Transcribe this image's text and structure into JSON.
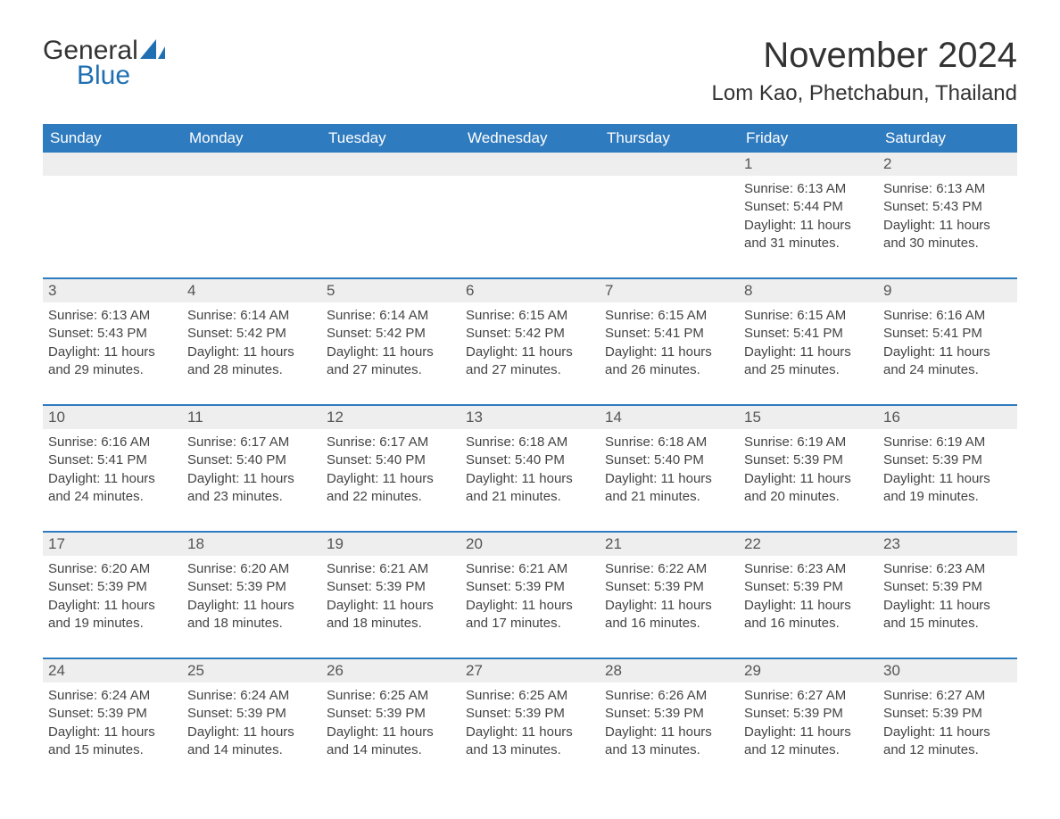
{
  "logo": {
    "text1": "General",
    "text2": "Blue",
    "accent_color": "#1f6fb2"
  },
  "title": "November 2024",
  "location": "Lom Kao, Phetchabun, Thailand",
  "colors": {
    "header_bg": "#2f7bbf",
    "header_fg": "#ffffff",
    "daynum_bg": "#eeeeee",
    "rule": "#2f7bbf",
    "text": "#333333"
  },
  "weekdays": [
    "Sunday",
    "Monday",
    "Tuesday",
    "Wednesday",
    "Thursday",
    "Friday",
    "Saturday"
  ],
  "weeks": [
    [
      null,
      null,
      null,
      null,
      null,
      {
        "n": "1",
        "sunrise": "Sunrise: 6:13 AM",
        "sunset": "Sunset: 5:44 PM",
        "day1": "Daylight: 11 hours",
        "day2": "and 31 minutes."
      },
      {
        "n": "2",
        "sunrise": "Sunrise: 6:13 AM",
        "sunset": "Sunset: 5:43 PM",
        "day1": "Daylight: 11 hours",
        "day2": "and 30 minutes."
      }
    ],
    [
      {
        "n": "3",
        "sunrise": "Sunrise: 6:13 AM",
        "sunset": "Sunset: 5:43 PM",
        "day1": "Daylight: 11 hours",
        "day2": "and 29 minutes."
      },
      {
        "n": "4",
        "sunrise": "Sunrise: 6:14 AM",
        "sunset": "Sunset: 5:42 PM",
        "day1": "Daylight: 11 hours",
        "day2": "and 28 minutes."
      },
      {
        "n": "5",
        "sunrise": "Sunrise: 6:14 AM",
        "sunset": "Sunset: 5:42 PM",
        "day1": "Daylight: 11 hours",
        "day2": "and 27 minutes."
      },
      {
        "n": "6",
        "sunrise": "Sunrise: 6:15 AM",
        "sunset": "Sunset: 5:42 PM",
        "day1": "Daylight: 11 hours",
        "day2": "and 27 minutes."
      },
      {
        "n": "7",
        "sunrise": "Sunrise: 6:15 AM",
        "sunset": "Sunset: 5:41 PM",
        "day1": "Daylight: 11 hours",
        "day2": "and 26 minutes."
      },
      {
        "n": "8",
        "sunrise": "Sunrise: 6:15 AM",
        "sunset": "Sunset: 5:41 PM",
        "day1": "Daylight: 11 hours",
        "day2": "and 25 minutes."
      },
      {
        "n": "9",
        "sunrise": "Sunrise: 6:16 AM",
        "sunset": "Sunset: 5:41 PM",
        "day1": "Daylight: 11 hours",
        "day2": "and 24 minutes."
      }
    ],
    [
      {
        "n": "10",
        "sunrise": "Sunrise: 6:16 AM",
        "sunset": "Sunset: 5:41 PM",
        "day1": "Daylight: 11 hours",
        "day2": "and 24 minutes."
      },
      {
        "n": "11",
        "sunrise": "Sunrise: 6:17 AM",
        "sunset": "Sunset: 5:40 PM",
        "day1": "Daylight: 11 hours",
        "day2": "and 23 minutes."
      },
      {
        "n": "12",
        "sunrise": "Sunrise: 6:17 AM",
        "sunset": "Sunset: 5:40 PM",
        "day1": "Daylight: 11 hours",
        "day2": "and 22 minutes."
      },
      {
        "n": "13",
        "sunrise": "Sunrise: 6:18 AM",
        "sunset": "Sunset: 5:40 PM",
        "day1": "Daylight: 11 hours",
        "day2": "and 21 minutes."
      },
      {
        "n": "14",
        "sunrise": "Sunrise: 6:18 AM",
        "sunset": "Sunset: 5:40 PM",
        "day1": "Daylight: 11 hours",
        "day2": "and 21 minutes."
      },
      {
        "n": "15",
        "sunrise": "Sunrise: 6:19 AM",
        "sunset": "Sunset: 5:39 PM",
        "day1": "Daylight: 11 hours",
        "day2": "and 20 minutes."
      },
      {
        "n": "16",
        "sunrise": "Sunrise: 6:19 AM",
        "sunset": "Sunset: 5:39 PM",
        "day1": "Daylight: 11 hours",
        "day2": "and 19 minutes."
      }
    ],
    [
      {
        "n": "17",
        "sunrise": "Sunrise: 6:20 AM",
        "sunset": "Sunset: 5:39 PM",
        "day1": "Daylight: 11 hours",
        "day2": "and 19 minutes."
      },
      {
        "n": "18",
        "sunrise": "Sunrise: 6:20 AM",
        "sunset": "Sunset: 5:39 PM",
        "day1": "Daylight: 11 hours",
        "day2": "and 18 minutes."
      },
      {
        "n": "19",
        "sunrise": "Sunrise: 6:21 AM",
        "sunset": "Sunset: 5:39 PM",
        "day1": "Daylight: 11 hours",
        "day2": "and 18 minutes."
      },
      {
        "n": "20",
        "sunrise": "Sunrise: 6:21 AM",
        "sunset": "Sunset: 5:39 PM",
        "day1": "Daylight: 11 hours",
        "day2": "and 17 minutes."
      },
      {
        "n": "21",
        "sunrise": "Sunrise: 6:22 AM",
        "sunset": "Sunset: 5:39 PM",
        "day1": "Daylight: 11 hours",
        "day2": "and 16 minutes."
      },
      {
        "n": "22",
        "sunrise": "Sunrise: 6:23 AM",
        "sunset": "Sunset: 5:39 PM",
        "day1": "Daylight: 11 hours",
        "day2": "and 16 minutes."
      },
      {
        "n": "23",
        "sunrise": "Sunrise: 6:23 AM",
        "sunset": "Sunset: 5:39 PM",
        "day1": "Daylight: 11 hours",
        "day2": "and 15 minutes."
      }
    ],
    [
      {
        "n": "24",
        "sunrise": "Sunrise: 6:24 AM",
        "sunset": "Sunset: 5:39 PM",
        "day1": "Daylight: 11 hours",
        "day2": "and 15 minutes."
      },
      {
        "n": "25",
        "sunrise": "Sunrise: 6:24 AM",
        "sunset": "Sunset: 5:39 PM",
        "day1": "Daylight: 11 hours",
        "day2": "and 14 minutes."
      },
      {
        "n": "26",
        "sunrise": "Sunrise: 6:25 AM",
        "sunset": "Sunset: 5:39 PM",
        "day1": "Daylight: 11 hours",
        "day2": "and 14 minutes."
      },
      {
        "n": "27",
        "sunrise": "Sunrise: 6:25 AM",
        "sunset": "Sunset: 5:39 PM",
        "day1": "Daylight: 11 hours",
        "day2": "and 13 minutes."
      },
      {
        "n": "28",
        "sunrise": "Sunrise: 6:26 AM",
        "sunset": "Sunset: 5:39 PM",
        "day1": "Daylight: 11 hours",
        "day2": "and 13 minutes."
      },
      {
        "n": "29",
        "sunrise": "Sunrise: 6:27 AM",
        "sunset": "Sunset: 5:39 PM",
        "day1": "Daylight: 11 hours",
        "day2": "and 12 minutes."
      },
      {
        "n": "30",
        "sunrise": "Sunrise: 6:27 AM",
        "sunset": "Sunset: 5:39 PM",
        "day1": "Daylight: 11 hours",
        "day2": "and 12 minutes."
      }
    ]
  ]
}
